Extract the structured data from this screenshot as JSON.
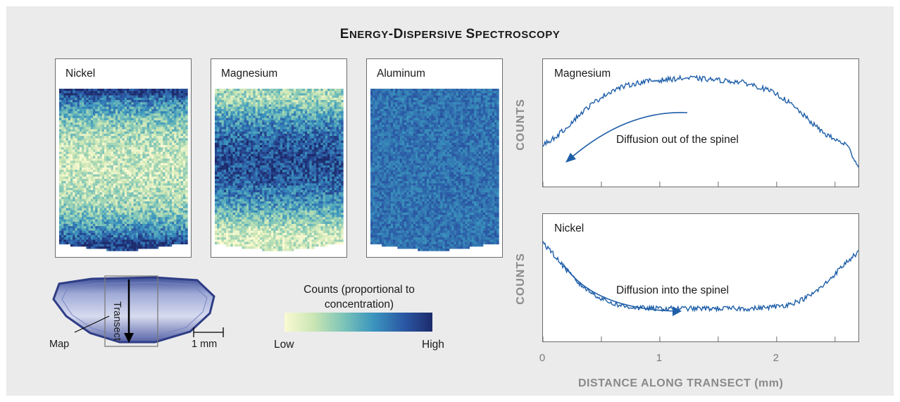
{
  "title": {
    "first": "E",
    "first_rest": "NERGY",
    "dash": "-",
    "second": "D",
    "second_rest": "ISPERSIVE",
    "third": "S",
    "third_rest": "PECTROSCOPY"
  },
  "maps": [
    {
      "label": "Nickel",
      "pattern": "nickel"
    },
    {
      "label": "Magnesium",
      "pattern": "magnesium"
    },
    {
      "label": "Aluminum",
      "pattern": "aluminum"
    }
  ],
  "crystal": {
    "transect_label": "Transect",
    "map_label": "Map",
    "scale_label": "1 mm"
  },
  "colorbar": {
    "title": "Counts (proportional to concentration)",
    "low_label": "Low",
    "high_label": "High",
    "colors": [
      "#fbfad2",
      "#c9e5b4",
      "#7cc4b8",
      "#3b95be",
      "#2b5aa6",
      "#1d2a6b"
    ]
  },
  "chart_data": [
    {
      "type": "line",
      "panel_label": "Magnesium",
      "ylabel": "COUNTS",
      "annotation": "Diffusion out of the spinel",
      "xlim": [
        0,
        2.7
      ],
      "ylim": [
        0,
        1
      ],
      "x": [
        0,
        0.1,
        0.2,
        0.3,
        0.4,
        0.5,
        0.6,
        0.7,
        0.8,
        0.9,
        1.0,
        1.1,
        1.2,
        1.3,
        1.4,
        1.5,
        1.6,
        1.7,
        1.8,
        1.9,
        2.0,
        2.1,
        2.2,
        2.3,
        2.4,
        2.5,
        2.6,
        2.7
      ],
      "y": [
        0.28,
        0.35,
        0.45,
        0.57,
        0.67,
        0.76,
        0.83,
        0.87,
        0.9,
        0.92,
        0.93,
        0.94,
        0.95,
        0.95,
        0.94,
        0.93,
        0.92,
        0.91,
        0.88,
        0.84,
        0.79,
        0.71,
        0.61,
        0.5,
        0.4,
        0.33,
        0.28,
        0.06
      ],
      "color": "#1e5ea8"
    },
    {
      "type": "line",
      "panel_label": "Nickel",
      "ylabel": "COUNTS",
      "annotation": "Diffusion into the spinel",
      "xlabel": "DISTANCE ALONG TRANSECT (mm)",
      "xlim": [
        0,
        2.7
      ],
      "ylim": [
        0,
        1
      ],
      "xticks": [
        0,
        1,
        2
      ],
      "x": [
        0,
        0.1,
        0.2,
        0.3,
        0.4,
        0.5,
        0.6,
        0.7,
        0.8,
        0.9,
        1.0,
        1.1,
        1.2,
        1.3,
        1.4,
        1.5,
        1.6,
        1.7,
        1.8,
        1.9,
        2.0,
        2.1,
        2.2,
        2.3,
        2.4,
        2.5,
        2.6,
        2.7
      ],
      "y": [
        0.86,
        0.72,
        0.58,
        0.45,
        0.36,
        0.29,
        0.24,
        0.21,
        0.2,
        0.19,
        0.19,
        0.19,
        0.19,
        0.19,
        0.19,
        0.19,
        0.19,
        0.19,
        0.19,
        0.2,
        0.21,
        0.23,
        0.27,
        0.33,
        0.42,
        0.54,
        0.66,
        0.76
      ],
      "color": "#1e5ea8"
    }
  ]
}
